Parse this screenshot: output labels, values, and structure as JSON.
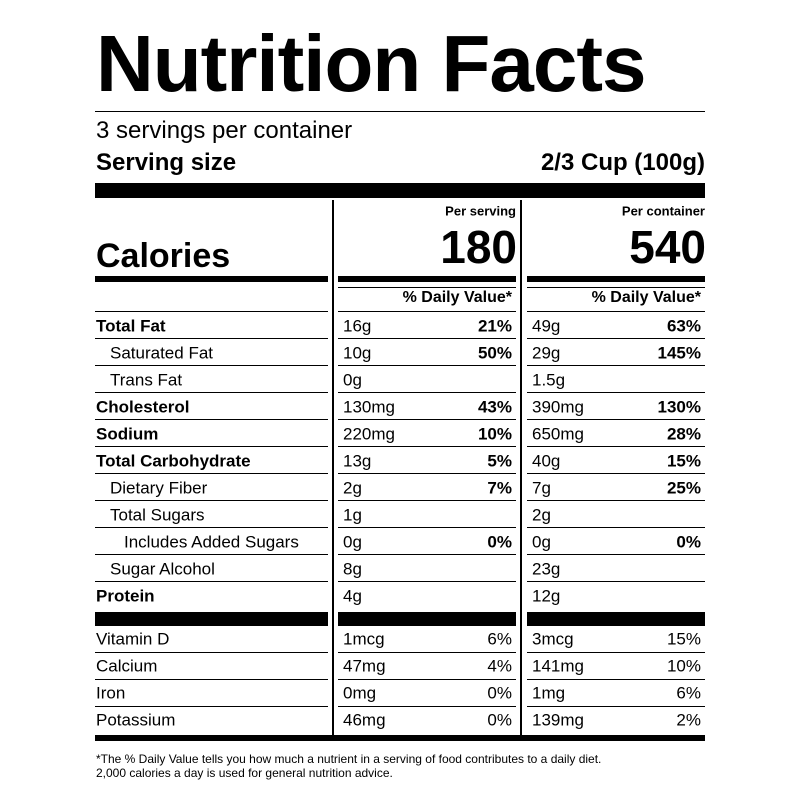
{
  "title": "Nutrition Facts",
  "servings": "3 servings per container",
  "serving_size": {
    "label": "Serving size",
    "value": "2/3 Cup (100g)"
  },
  "calories_label": "Calories",
  "columns": [
    {
      "header": "Per serving",
      "calories": 180,
      "dv_header": "% Daily Value*"
    },
    {
      "header": "Per container",
      "calories": 540,
      "dv_header": "% Daily Value*"
    }
  ],
  "nutrients": [
    {
      "name": "Total Fat",
      "bold": true,
      "indent": 0,
      "values": [
        {
          "amount": "16g",
          "dv": "21%"
        },
        {
          "amount": "49g",
          "dv": "63%"
        }
      ]
    },
    {
      "name": "Saturated Fat",
      "bold": false,
      "indent": 1,
      "values": [
        {
          "amount": "10g",
          "dv": "50%"
        },
        {
          "amount": "29g",
          "dv": "145%"
        }
      ]
    },
    {
      "name": "Trans Fat",
      "bold": false,
      "indent": 1,
      "values": [
        {
          "amount": "0g"
        },
        {
          "amount": "1.5g"
        }
      ]
    },
    {
      "name": "Cholesterol",
      "bold": true,
      "indent": 0,
      "values": [
        {
          "amount": "130mg",
          "dv": "43%"
        },
        {
          "amount": "390mg",
          "dv": "130%"
        }
      ]
    },
    {
      "name": "Sodium",
      "bold": true,
      "indent": 0,
      "values": [
        {
          "amount": "220mg",
          "dv": "10%"
        },
        {
          "amount": "650mg",
          "dv": "28%"
        }
      ]
    },
    {
      "name": "Total Carbohydrate",
      "bold": true,
      "indent": 0,
      "values": [
        {
          "amount": "13g",
          "dv": "5%"
        },
        {
          "amount": "40g",
          "dv": "15%"
        }
      ]
    },
    {
      "name": "Dietary Fiber",
      "bold": false,
      "indent": 1,
      "values": [
        {
          "amount": "2g",
          "dv": "7%"
        },
        {
          "amount": "7g",
          "dv": "25%"
        }
      ]
    },
    {
      "name": "Total Sugars",
      "bold": false,
      "indent": 1,
      "values": [
        {
          "amount": "1g"
        },
        {
          "amount": "2g"
        }
      ]
    },
    {
      "name": "Includes Added Sugars",
      "bold": false,
      "indent": 2,
      "values": [
        {
          "amount": "0g",
          "dv": "0%"
        },
        {
          "amount": "0g",
          "dv": "0%"
        }
      ]
    },
    {
      "name": "Sugar Alcohol",
      "bold": false,
      "indent": 1,
      "values": [
        {
          "amount": "8g"
        },
        {
          "amount": "23g"
        }
      ]
    },
    {
      "name": "Protein",
      "bold": true,
      "indent": 0,
      "values": [
        {
          "amount": "4g"
        },
        {
          "amount": "12g"
        }
      ]
    }
  ],
  "vitamins": [
    {
      "name": "Vitamin D",
      "values": [
        {
          "amount": "1mcg",
          "dv": "6%"
        },
        {
          "amount": "3mcg",
          "dv": "15%"
        }
      ]
    },
    {
      "name": "Calcium",
      "values": [
        {
          "amount": "47mg",
          "dv": "4%"
        },
        {
          "amount": "141mg",
          "dv": "10%"
        }
      ]
    },
    {
      "name": "Iron",
      "values": [
        {
          "amount": "0mg",
          "dv": "0%"
        },
        {
          "amount": "1mg",
          "dv": "6%"
        }
      ]
    },
    {
      "name": "Potassium",
      "values": [
        {
          "amount": "46mg",
          "dv": "0%"
        },
        {
          "amount": "139mg",
          "dv": "2%"
        }
      ]
    }
  ],
  "footnote": [
    "*The % Daily Value tells you how much a nutrient in a serving of food contributes to a daily diet.",
    "2,000 calories a day is used for general nutrition advice."
  ]
}
